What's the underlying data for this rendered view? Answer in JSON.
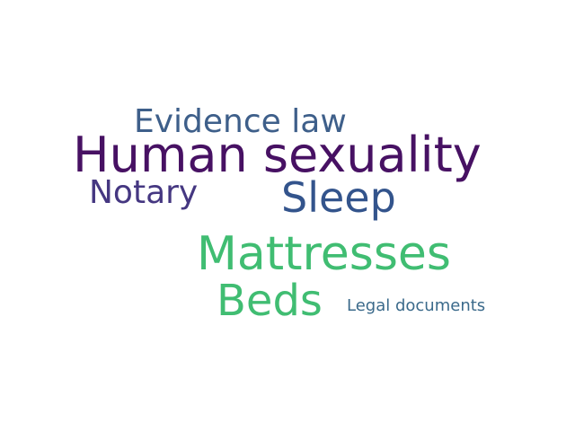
{
  "words": [
    {
      "text": "Evidence law",
      "color": "#3e5f8a"
    },
    {
      "text": "Human sexuality",
      "color": "#471163"
    },
    {
      "text": "Notary",
      "color": "#453781"
    },
    {
      "text": "Sleep",
      "color": "#33548c"
    },
    {
      "text": "Mattresses",
      "color": "#40bd72"
    },
    {
      "text": "Beds",
      "color": "#40bd72"
    },
    {
      "text": "Legal documents",
      "color": "#3b6a8b"
    }
  ]
}
